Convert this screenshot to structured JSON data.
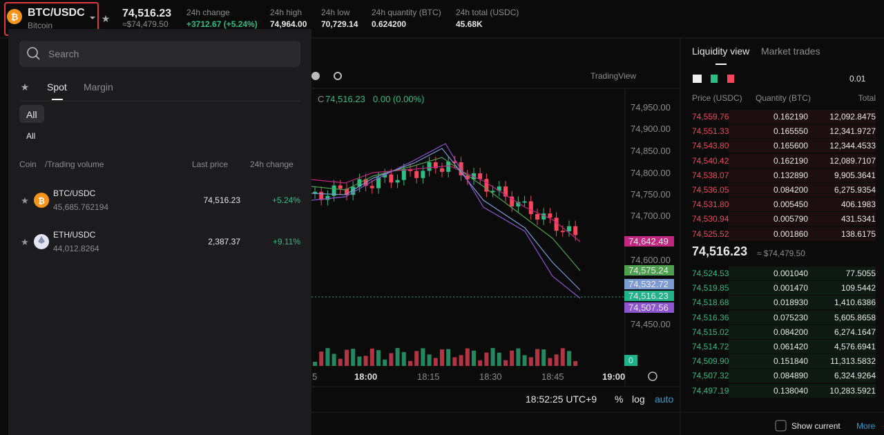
{
  "header": {
    "pair": "BTC/USDC",
    "name": "Bitcoin",
    "price": "74,516.23",
    "price_usd": "≈$74,479.50",
    "stats": [
      {
        "label": "24h change",
        "value": "+3712.67 (+5.24%)"
      },
      {
        "label": "24h high",
        "value": "74,964.00"
      },
      {
        "label": "24h low",
        "value": "70,729.14"
      },
      {
        "label": "24h quantity (BTC)",
        "value": "0.624200"
      },
      {
        "label": "24h total (USDC)",
        "value": "45.68K"
      }
    ]
  },
  "dropdown": {
    "search": "Search",
    "tabs": [
      "Spot",
      "Margin"
    ],
    "filter": "All",
    "subfilter": "All",
    "columns": {
      "coin": "Coin",
      "volume": "/Trading volume",
      "price": "Last price",
      "change": "24h change"
    },
    "rows": [
      {
        "pair": "BTC/USDC",
        "volume": "45,685.762194",
        "price": "74,516.23",
        "change": "+5.24%"
      },
      {
        "pair": "ETH/USDC",
        "volume": "44,012.8264",
        "price": "2,387.37",
        "change": "+9.11%"
      }
    ]
  },
  "chart": {
    "provider": "TradingView",
    "ohlc_label": "C",
    "close": "74,516.23",
    "delta": "0.00 (0.00%)",
    "price_labels": [
      "74,950.00",
      "74,900.00",
      "74,850.00",
      "74,800.00",
      "74,750.00",
      "74,700.00",
      "74,600.00",
      "74,450.00"
    ],
    "tags": [
      {
        "label": "74,642.49",
        "color": "#c2267f"
      },
      {
        "label": "74,575.24",
        "color": "#4e9f4e"
      },
      {
        "label": "74,532.72",
        "color": "#7d9bd3"
      },
      {
        "label": "74,516.23",
        "color": "#20b28a"
      },
      {
        "label": "74,507.56",
        "color": "#8d55cf"
      }
    ],
    "volume_tag": "0",
    "times": [
      "5",
      "18:00",
      "18:15",
      "18:30",
      "18:45",
      "19:00"
    ],
    "clock": "18:52:25 UTC+9",
    "percent": "%",
    "log": "log",
    "auto": "auto"
  },
  "orderbook": {
    "tabs": [
      "Liquidity view",
      "Market trades"
    ],
    "tick": "0.01",
    "headers": [
      "Price (USDC)",
      "Quantity (BTC)",
      "Total"
    ],
    "asks": [
      [
        "74,559.76",
        "0.162190",
        "12,092.8475"
      ],
      [
        "74,551.33",
        "0.165550",
        "12,341.9727"
      ],
      [
        "74,543.80",
        "0.165600",
        "12,344.4533"
      ],
      [
        "74,540.42",
        "0.162190",
        "12,089.7107"
      ],
      [
        "74,538.07",
        "0.132890",
        "9,905.3641"
      ],
      [
        "74,536.05",
        "0.084200",
        "6,275.9354"
      ],
      [
        "74,531.80",
        "0.005450",
        "406.1983"
      ],
      [
        "74,530.94",
        "0.005790",
        "431.5341"
      ],
      [
        "74,525.52",
        "0.001860",
        "138.6175"
      ]
    ],
    "mid": "74,516.23",
    "mid_usd": "≈ $74,479.50",
    "bids": [
      [
        "74,524.53",
        "0.001040",
        "77.5055"
      ],
      [
        "74,519.85",
        "0.001470",
        "109.5442"
      ],
      [
        "74,518.68",
        "0.018930",
        "1,410.6386"
      ],
      [
        "74,516.36",
        "0.075230",
        "5,605.8658"
      ],
      [
        "74,515.02",
        "0.084200",
        "6,274.1647"
      ],
      [
        "74,514.72",
        "0.061420",
        "4,576.6941"
      ],
      [
        "74,509.90",
        "0.151840",
        "11,313.5832"
      ],
      [
        "74,507.32",
        "0.084890",
        "6,324.9264"
      ],
      [
        "74,497.19",
        "0.138040",
        "10,283.5921"
      ]
    ],
    "show_current": "Show current",
    "more": "More"
  }
}
